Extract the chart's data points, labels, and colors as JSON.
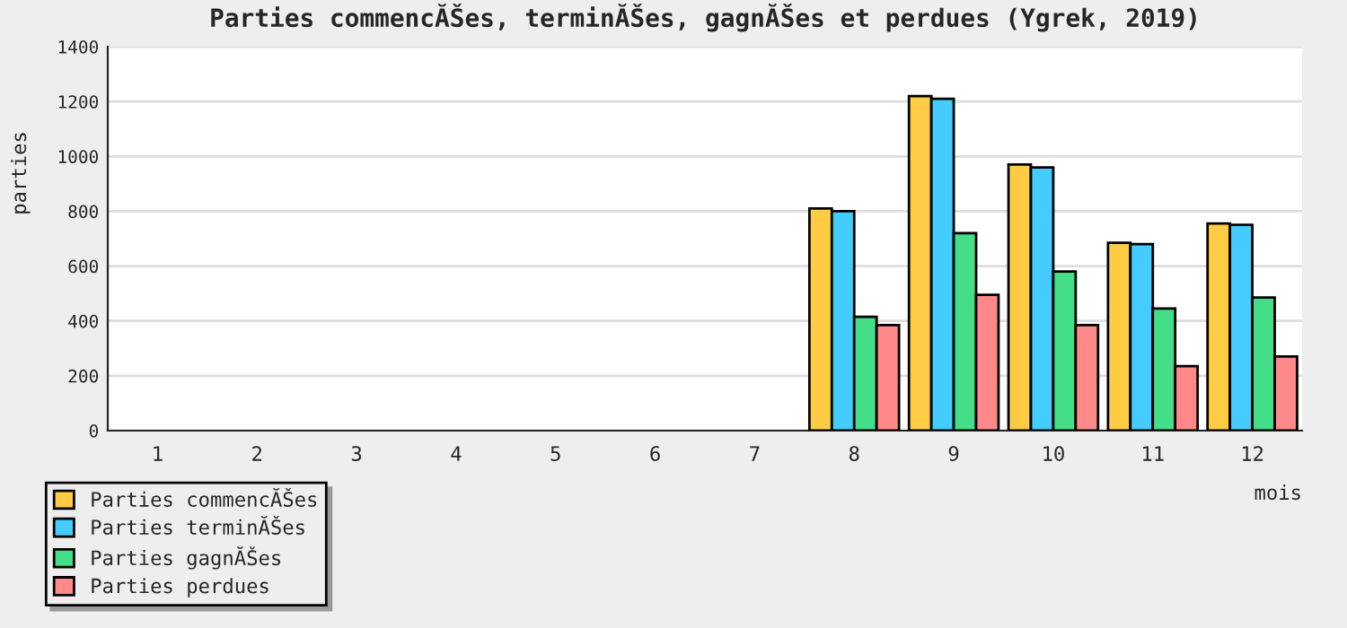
{
  "chart_data": {
    "type": "bar",
    "title": "Parties commencĂŠes, terminĂŠes, gagnĂŠes et perdues (Ygrek, 2019)",
    "xlabel": "mois",
    "ylabel": "parties",
    "categories": [
      "1",
      "2",
      "3",
      "4",
      "5",
      "6",
      "7",
      "8",
      "9",
      "10",
      "11",
      "12"
    ],
    "series": [
      {
        "name": "Parties commencĂŠes",
        "color": "#ffcc44",
        "values": [
          null,
          null,
          null,
          null,
          null,
          null,
          null,
          810,
          1220,
          970,
          685,
          755
        ]
      },
      {
        "name": "Parties terminĂŠes",
        "color": "#44ccff",
        "values": [
          null,
          null,
          null,
          null,
          null,
          null,
          null,
          800,
          1210,
          960,
          680,
          750
        ]
      },
      {
        "name": "Parties gagnĂŠes",
        "color": "#44dd88",
        "values": [
          null,
          null,
          null,
          null,
          null,
          null,
          null,
          415,
          720,
          580,
          445,
          485
        ]
      },
      {
        "name": "Parties perdues",
        "color": "#ff8888",
        "values": [
          null,
          null,
          null,
          null,
          null,
          null,
          null,
          385,
          495,
          385,
          235,
          270
        ]
      }
    ],
    "ylim": [
      0,
      1400
    ],
    "yticks": [
      0,
      200,
      400,
      600,
      800,
      1000,
      1200,
      1400
    ],
    "grid": "y",
    "legend": "bottom left"
  }
}
